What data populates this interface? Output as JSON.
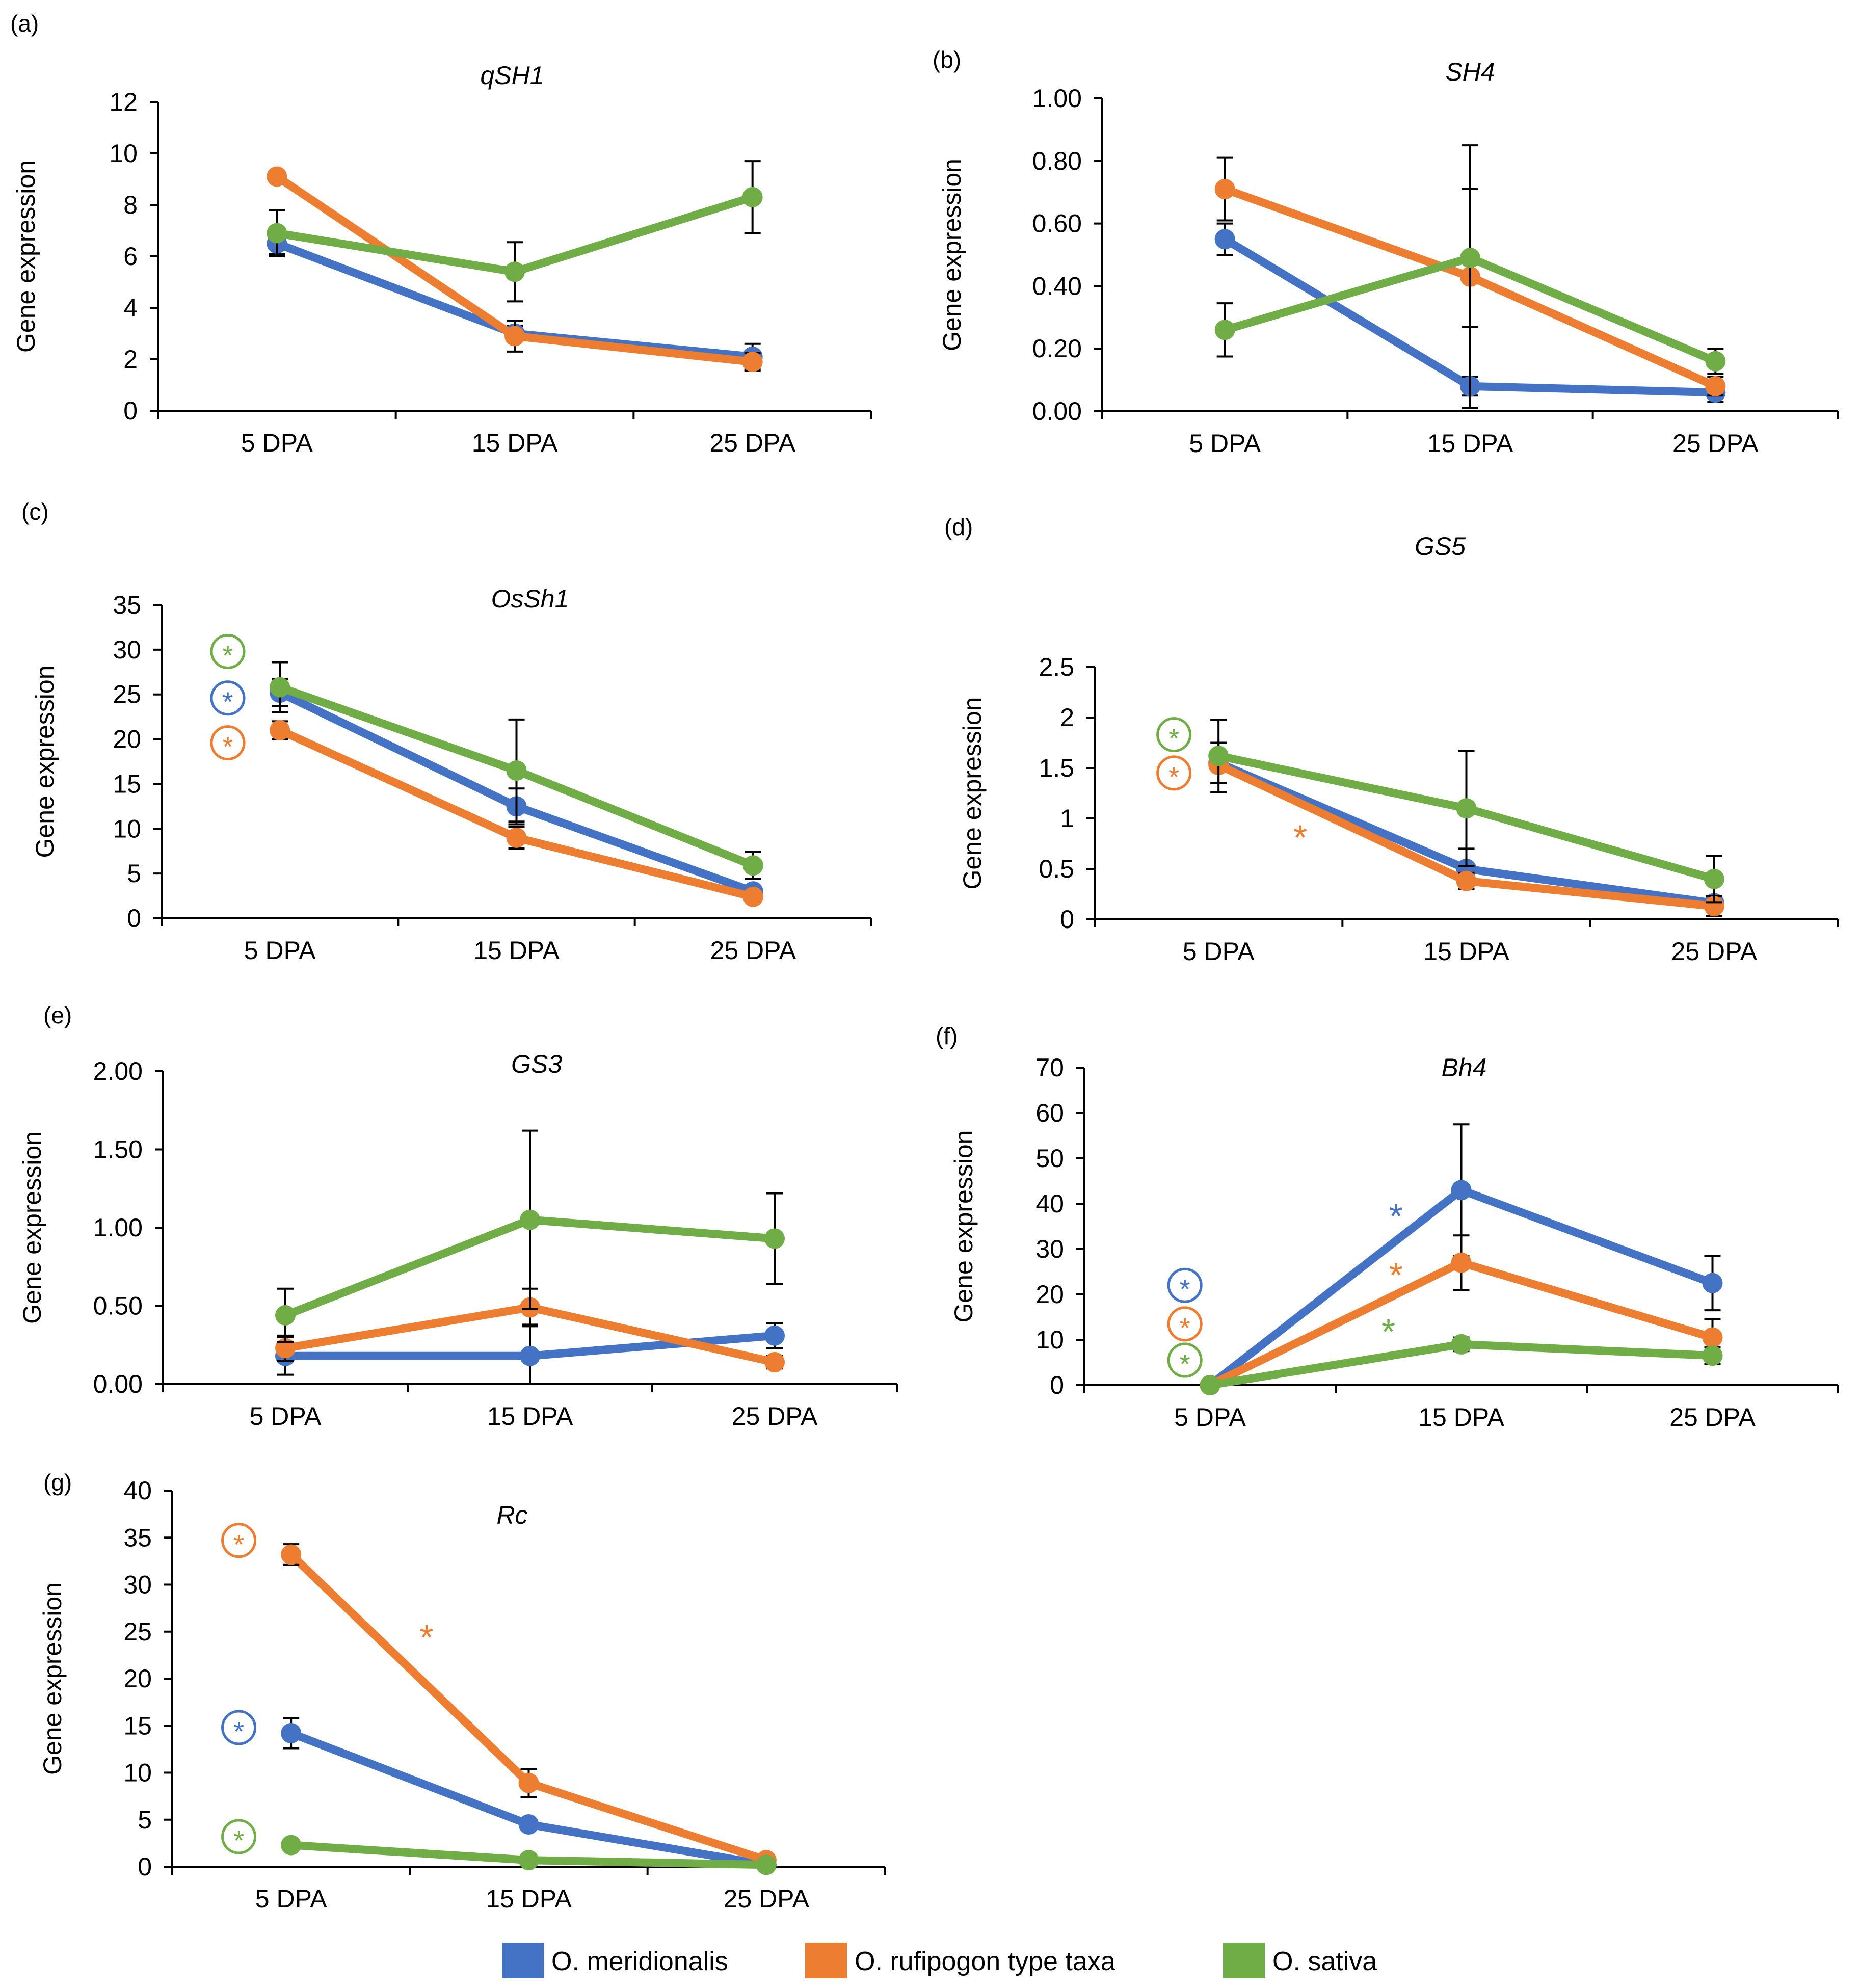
{
  "colors": {
    "meridionalis": "#4472C4",
    "rufipogon": "#ED7D31",
    "sativa": "#70AD47",
    "axis": "#000000"
  },
  "legend": [
    {
      "key": "meridionalis",
      "label": "O. meridionalis"
    },
    {
      "key": "rufipogon",
      "label": "O. rufipogon type taxa"
    },
    {
      "key": "sativa",
      "label": "O. sativa"
    }
  ],
  "chart_data": [
    {
      "panel": "(a)",
      "type": "line",
      "title": "qSH1",
      "ylabel": "Gene expression",
      "xlabel": "",
      "categories": [
        "5 DPA",
        "15 DPA",
        "25 DPA"
      ],
      "ylim": [
        0,
        12
      ],
      "yticks": [
        "0",
        "2",
        "4",
        "6",
        "8",
        "10",
        "12"
      ],
      "series": [
        {
          "name": "O. meridionalis",
          "key": "meridionalis",
          "values": [
            6.5,
            3.0,
            2.1
          ],
          "err": [
            0.4,
            0.3,
            0.5
          ]
        },
        {
          "name": "O. rufipogon type taxa",
          "key": "rufipogon",
          "values": [
            9.1,
            2.9,
            1.9
          ],
          "err": [
            0,
            0.6,
            0.35
          ]
        },
        {
          "name": "O. sativa",
          "key": "sativa",
          "values": [
            6.9,
            5.4,
            8.3
          ],
          "err": [
            0.9,
            1.15,
            1.4
          ]
        }
      ],
      "markers": []
    },
    {
      "panel": "(b)",
      "type": "line",
      "title": "SH4",
      "ylabel": "Gene expression",
      "xlabel": "",
      "categories": [
        "5 DPA",
        "15 DPA",
        "25 DPA"
      ],
      "ylim": [
        0,
        1
      ],
      "yticks": [
        "0.00",
        "0.20",
        "0.40",
        "0.60",
        "0.80",
        "1.00"
      ],
      "series": [
        {
          "name": "O. meridionalis",
          "key": "meridionalis",
          "values": [
            0.55,
            0.08,
            0.06
          ],
          "err": [
            0.05,
            0.03,
            0.03
          ]
        },
        {
          "name": "O. rufipogon type taxa",
          "key": "rufipogon",
          "values": [
            0.71,
            0.43,
            0.08
          ],
          "err": [
            0.1,
            0.42,
            0.03
          ]
        },
        {
          "name": "O. sativa",
          "key": "sativa",
          "values": [
            0.26,
            0.49,
            0.16
          ],
          "err": [
            0.085,
            0.22,
            0.04
          ]
        }
      ],
      "markers": []
    },
    {
      "panel": "(c)",
      "type": "line",
      "title": "OsSh1",
      "ylabel": "Gene expression",
      "xlabel": "",
      "categories": [
        "5 DPA",
        "15 DPA",
        "25 DPA"
      ],
      "ylim": [
        0,
        35
      ],
      "yticks": [
        "0",
        "5",
        "10",
        "15",
        "20",
        "25",
        "30",
        "35"
      ],
      "series": [
        {
          "name": "O. meridionalis",
          "key": "meridionalis",
          "values": [
            25.2,
            12.5,
            3.0
          ],
          "err": [
            1.5,
            2.0,
            0.5
          ]
        },
        {
          "name": "O. rufipogon type taxa",
          "key": "rufipogon",
          "values": [
            21.0,
            9.0,
            2.4
          ],
          "err": [
            1.0,
            1.2,
            0.5
          ]
        },
        {
          "name": "O. sativa",
          "key": "sativa",
          "values": [
            25.8,
            16.5,
            5.9
          ],
          "err": [
            2.8,
            5.7,
            1.5
          ]
        }
      ],
      "markers": [
        {
          "key": "sativa",
          "circled": true,
          "cat": -0.22,
          "y": 29.8,
          "text": "*"
        },
        {
          "key": "meridionalis",
          "circled": true,
          "cat": -0.22,
          "y": 24.6,
          "text": "*"
        },
        {
          "key": "rufipogon",
          "circled": true,
          "cat": -0.22,
          "y": 19.6,
          "text": "*"
        }
      ]
    },
    {
      "panel": "(d)",
      "type": "line",
      "title": "GS5",
      "ylabel": "Gene expression",
      "xlabel": "",
      "categories": [
        "5 DPA",
        "15 DPA",
        "25 DPA"
      ],
      "ylim": [
        0,
        2.5
      ],
      "yticks": [
        "0",
        "0.5",
        "1",
        "1.5",
        "2",
        "2.5"
      ],
      "series": [
        {
          "name": "O. meridionalis",
          "key": "meridionalis",
          "values": [
            1.55,
            0.5,
            0.16
          ],
          "err": [
            0.2,
            0.2,
            0.05
          ]
        },
        {
          "name": "O. rufipogon type taxa",
          "key": "rufipogon",
          "values": [
            1.53,
            0.38,
            0.13
          ],
          "err": [
            0,
            0.08,
            0.1
          ]
        },
        {
          "name": "O. sativa",
          "key": "sativa",
          "values": [
            1.62,
            1.1,
            0.4
          ],
          "err": [
            0.36,
            0.57,
            0.23
          ]
        }
      ],
      "markers": [
        {
          "key": "sativa",
          "circled": true,
          "cat": -0.18,
          "y": 1.83,
          "text": "*"
        },
        {
          "key": "rufipogon",
          "circled": true,
          "cat": -0.18,
          "y": 1.45,
          "text": "*"
        },
        {
          "key": "rufipogon",
          "circled": false,
          "cat": 0.33,
          "y": 0.82,
          "text": "*"
        }
      ]
    },
    {
      "panel": "(e)",
      "type": "line",
      "title": "GS3",
      "ylabel": "Gene expression",
      "xlabel": "",
      "categories": [
        "5 DPA",
        "15 DPA",
        "25 DPA"
      ],
      "ylim": [
        0,
        2
      ],
      "yticks": [
        "0.00",
        "0.50",
        "1.00",
        "1.50",
        "2.00"
      ],
      "series": [
        {
          "name": "O. meridionalis",
          "key": "meridionalis",
          "values": [
            0.18,
            0.18,
            0.31
          ],
          "err": [
            0.12,
            0.2,
            0.08
          ]
        },
        {
          "name": "O. rufipogon type taxa",
          "key": "rufipogon",
          "values": [
            0.23,
            0.49,
            0.14
          ],
          "err": [
            0.08,
            0.12,
            0.04
          ]
        },
        {
          "name": "O. sativa",
          "key": "sativa",
          "values": [
            0.44,
            1.05,
            0.93
          ],
          "err": [
            0.17,
            0.57,
            0.29
          ]
        }
      ],
      "markers": []
    },
    {
      "panel": "(f)",
      "type": "line",
      "title": "Bh4",
      "ylabel": "Gene expression",
      "xlabel": "",
      "categories": [
        "5 DPA",
        "15 DPA",
        "25 DPA"
      ],
      "ylim": [
        0,
        70
      ],
      "yticks": [
        "0",
        "10",
        "20",
        "30",
        "40",
        "50",
        "60",
        "70"
      ],
      "series": [
        {
          "name": "O. meridionalis",
          "key": "meridionalis",
          "values": [
            0,
            43,
            22.5
          ],
          "err": [
            0,
            14.5,
            6
          ]
        },
        {
          "name": "O. rufipogon type taxa",
          "key": "rufipogon",
          "values": [
            0,
            27,
            10.5
          ],
          "err": [
            0,
            6,
            4
          ]
        },
        {
          "name": "O. sativa",
          "key": "sativa",
          "values": [
            0,
            9,
            6.5
          ],
          "err": [
            0,
            1.5,
            1.8
          ]
        }
      ],
      "markers": [
        {
          "key": "meridionalis",
          "circled": true,
          "cat": -0.1,
          "y": 22,
          "text": "*"
        },
        {
          "key": "rufipogon",
          "circled": true,
          "cat": -0.1,
          "y": 13.5,
          "text": "*"
        },
        {
          "key": "sativa",
          "circled": true,
          "cat": -0.1,
          "y": 5.5,
          "text": "*"
        },
        {
          "key": "meridionalis",
          "circled": false,
          "cat": 0.74,
          "y": 37.5,
          "text": "*"
        },
        {
          "key": "rufipogon",
          "circled": false,
          "cat": 0.74,
          "y": 24.5,
          "text": "*"
        },
        {
          "key": "sativa",
          "circled": false,
          "cat": 0.71,
          "y": 12,
          "text": "*"
        }
      ]
    },
    {
      "panel": "(g)",
      "type": "line",
      "title": "Rc",
      "ylabel": "Gene expression",
      "xlabel": "",
      "categories": [
        "5 DPA",
        "15 DPA",
        "25 DPA"
      ],
      "ylim": [
        0,
        40
      ],
      "yticks": [
        "0",
        "5",
        "10",
        "15",
        "20",
        "25",
        "30",
        "35",
        "40"
      ],
      "series": [
        {
          "name": "O. meridionalis",
          "key": "meridionalis",
          "values": [
            14.2,
            4.5,
            0.2
          ],
          "err": [
            1.6,
            0.3,
            0.2
          ]
        },
        {
          "name": "O. rufipogon type taxa",
          "key": "rufipogon",
          "values": [
            33.2,
            8.9,
            0.7
          ],
          "err": [
            1.1,
            1.5,
            0.3
          ]
        },
        {
          "name": "O. sativa",
          "key": "sativa",
          "values": [
            2.3,
            0.7,
            0.2
          ],
          "err": [
            0,
            0,
            0
          ]
        }
      ],
      "markers": [
        {
          "key": "rufipogon",
          "circled": true,
          "cat": -0.22,
          "y": 34.7,
          "text": "*"
        },
        {
          "key": "meridionalis",
          "circled": true,
          "cat": -0.22,
          "y": 14.8,
          "text": "*"
        },
        {
          "key": "sativa",
          "circled": true,
          "cat": -0.22,
          "y": 3.2,
          "text": "*"
        },
        {
          "key": "rufipogon",
          "circled": false,
          "cat": 0.57,
          "y": 24.5,
          "text": "*"
        }
      ]
    }
  ]
}
